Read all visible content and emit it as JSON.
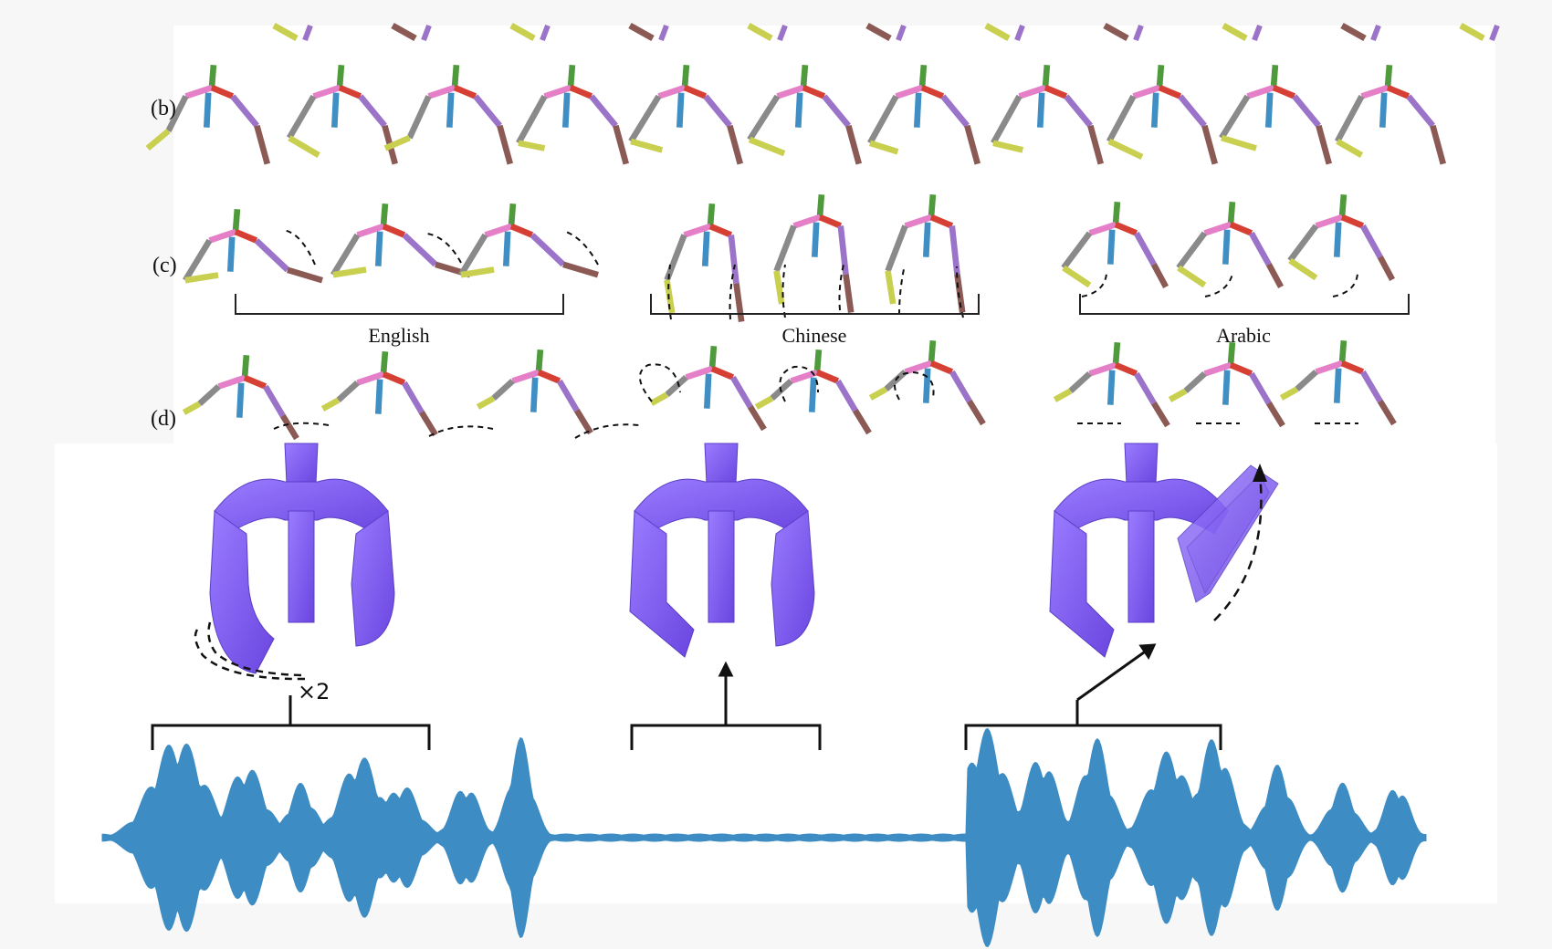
{
  "rows": {
    "b": "(b)",
    "c": "(c)",
    "d": "(d)"
  },
  "groups": {
    "english": "English",
    "chinese": "Chinese",
    "arabic": "Arabic"
  },
  "repeat_label": "×2",
  "colors": {
    "neck": "#4f9a3c",
    "spine": "#e57fc8",
    "collar_right": "#d64034",
    "head": "#f0a23a",
    "torso": "#3f8fc4",
    "upper_arm_left": "#8a8a8a",
    "forearm_left": "#c9cf4f",
    "upper_arm_right": "#9b73c9",
    "forearm_right": "#8c5a55",
    "avatar": "#7b55ee",
    "waveform": "#3d8cc4",
    "panel_bg": "#ffffff",
    "page_bg": "#f7f7f7"
  }
}
